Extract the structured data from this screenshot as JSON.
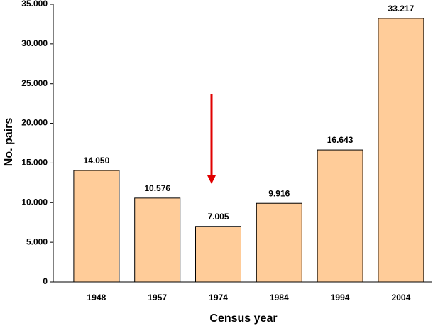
{
  "chart_data": {
    "type": "bar",
    "x_label": "Census year",
    "y_label": "No. pairs",
    "categories": [
      "1948",
      "1957",
      "1974",
      "1984",
      "1994",
      "2004"
    ],
    "values": [
      14050,
      10576,
      7005,
      9916,
      16643,
      33217
    ],
    "value_labels": [
      "14.050",
      "10.576",
      "7.005",
      "9.916",
      "16.643",
      "33.217"
    ],
    "color": "#ffcc99",
    "ylim": [
      0,
      35000
    ],
    "yticks": [
      0,
      {
        "value": 5000,
        "label": "5.000"
      },
      {
        "value": 10000,
        "label": "10.000"
      },
      {
        "value": 15000,
        "label": "15.000"
      },
      {
        "value": 20000,
        "label": "20.000"
      },
      {
        "value": 25000,
        "label": "25.000"
      },
      {
        "value": 30000,
        "label": "30.000"
      },
      {
        "value": 35000,
        "label": "35.000"
      }
    ],
    "grid": false
  }
}
